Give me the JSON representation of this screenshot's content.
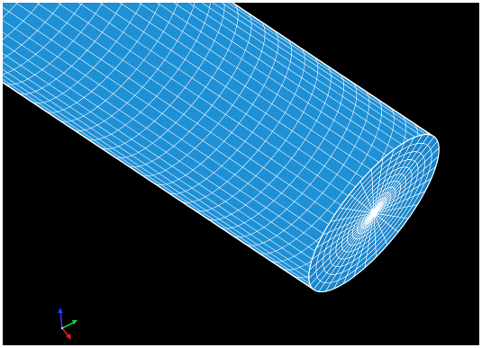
{
  "viewport": {
    "background": "#000000",
    "frame_color": "#ffffff"
  },
  "model": {
    "shape": "cylinder",
    "surface_color": "#1e90d6",
    "face_color": "#1a86cc",
    "mesh_color": "#ffffff",
    "icon": "meshed-cylinder-icon"
  },
  "triad": {
    "icon": "coordinate-triad-icon",
    "axes": [
      {
        "name": "x",
        "color": "#e0201e"
      },
      {
        "name": "y",
        "color": "#22c83a"
      },
      {
        "name": "z",
        "color": "#2a3cf0"
      }
    ]
  }
}
